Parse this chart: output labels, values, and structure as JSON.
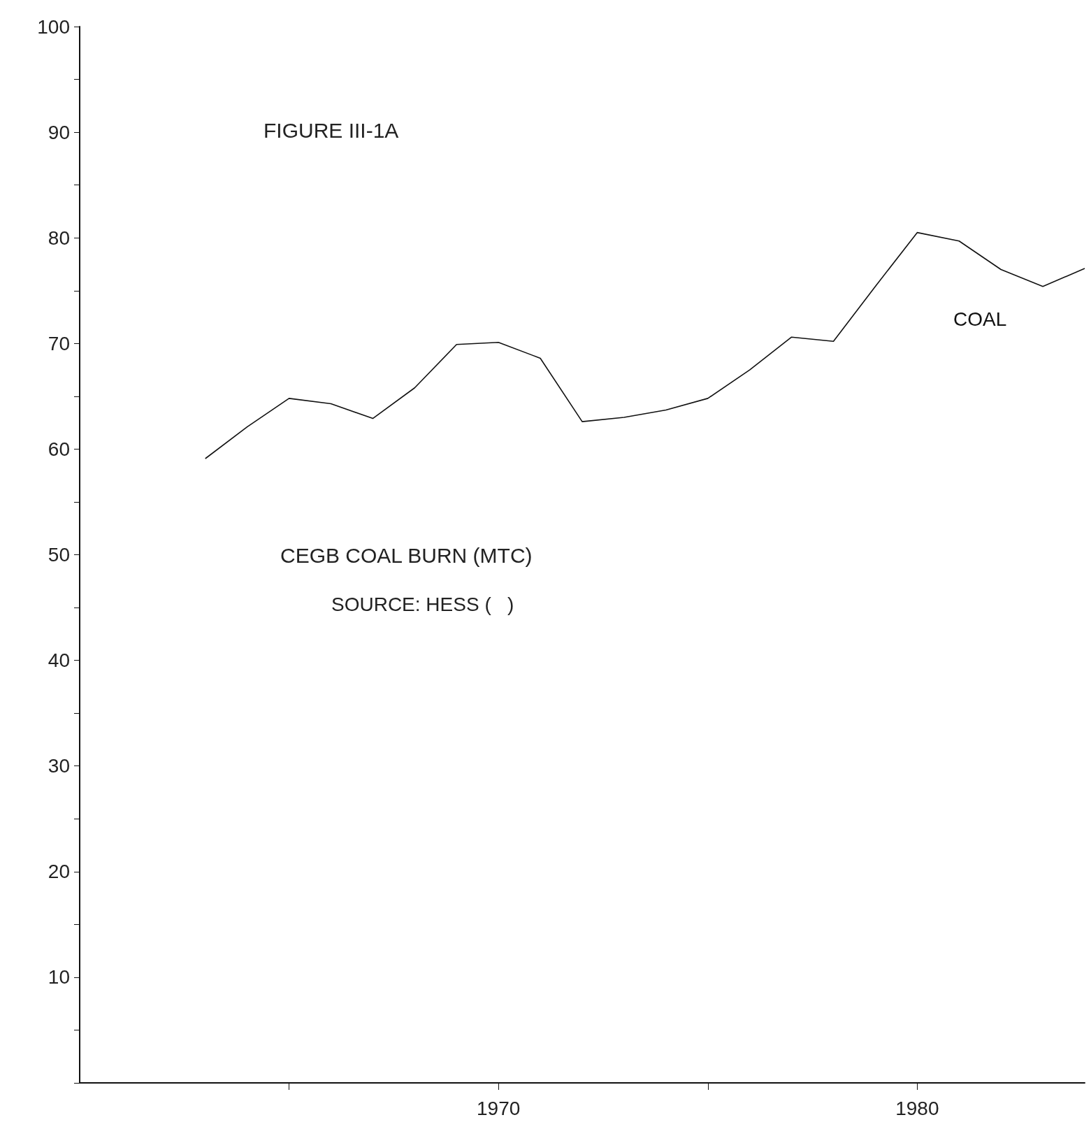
{
  "chart_data": {
    "type": "line",
    "title": "FIGURE III-1A",
    "subtitle": "CEGB COAL BURN (MTC)",
    "annotations": [
      "SOURCE: HESS (   )"
    ],
    "x": [
      1963,
      1964,
      1965,
      1966,
      1967,
      1968,
      1969,
      1970,
      1971,
      1972,
      1973,
      1974,
      1975,
      1976,
      1977,
      1978,
      1979,
      1980,
      1981,
      1982,
      1983,
      1984
    ],
    "series": [
      {
        "name": "COAL",
        "color": "#111111",
        "values": [
          59.1,
          62.1,
          64.8,
          64.3,
          62.9,
          65.8,
          69.9,
          70.1,
          68.6,
          62.6,
          63.0,
          63.7,
          64.8,
          67.5,
          70.6,
          70.2,
          75.4,
          80.5,
          79.7,
          77.0,
          75.4,
          77.1
        ]
      }
    ],
    "xlim": [
      1960,
      1984
    ],
    "xticks": [
      {
        "value": 1965,
        "label": null
      },
      1970,
      {
        "value": 1975,
        "label": null
      },
      1980
    ],
    "ylim": [
      0,
      100
    ],
    "yticks": [
      {
        "value": 0,
        "label": null
      },
      {
        "value": 5,
        "label": null
      },
      10,
      {
        "value": 15,
        "label": null
      },
      20,
      {
        "value": 25,
        "label": null
      },
      30,
      {
        "value": 35,
        "label": null
      },
      40,
      {
        "value": 45,
        "label": null
      },
      50,
      {
        "value": 55,
        "label": null
      },
      60,
      {
        "value": 65,
        "label": null
      },
      70,
      {
        "value": 75,
        "label": null
      },
      80,
      {
        "value": 85,
        "label": null
      },
      90,
      {
        "value": 95,
        "label": null
      },
      100
    ],
    "grid": false,
    "legend": false,
    "marker": "none",
    "line_style": "solid"
  }
}
